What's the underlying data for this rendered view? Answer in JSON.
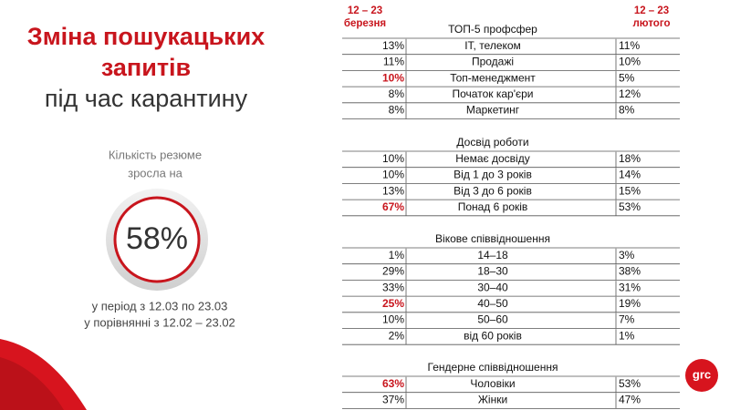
{
  "header": {
    "title_lines": [
      "Зміна пошукацьких",
      "запитів"
    ],
    "subtitle": "під час карантину"
  },
  "stat": {
    "caption_lines": [
      "Кількість резюме",
      "зросла на"
    ],
    "value": "58%",
    "note_lines": [
      "у період з 12.03 по 23.03",
      "у порівнянні з 12.02 – 23.02"
    ]
  },
  "table": {
    "col_march": [
      "12 – 23",
      "березня"
    ],
    "col_february": [
      "12 – 23",
      "лютого"
    ],
    "sections": [
      {
        "title": "ТОП-5 профсфер",
        "rows": [
          {
            "march": "13%",
            "label": "IT, телеком",
            "february": "11%"
          },
          {
            "march": "11%",
            "label": "Продажі",
            "february": "10%"
          },
          {
            "march": "10%",
            "label": "Топ-менеджмент",
            "february": "5%",
            "highlight": true
          },
          {
            "march": "8%",
            "label": "Початок кар'єри",
            "february": "12%"
          },
          {
            "march": "8%",
            "label": "Маркетинг",
            "february": "8%"
          }
        ]
      },
      {
        "title": "Досвід роботи",
        "rows": [
          {
            "march": "10%",
            "label": "Немає досвіду",
            "february": "18%"
          },
          {
            "march": "10%",
            "label": "Від 1 до 3 років",
            "february": "14%"
          },
          {
            "march": "13%",
            "label": "Від 3 до 6 років",
            "february": "15%"
          },
          {
            "march": "67%",
            "label": "Понад 6 років",
            "february": "53%",
            "highlight": true
          }
        ]
      },
      {
        "title": "Вікове співвідношення",
        "rows": [
          {
            "march": "1%",
            "label": "14–18",
            "february": "3%"
          },
          {
            "march": "29%",
            "label": "18–30",
            "february": "38%"
          },
          {
            "march": "33%",
            "label": "30–40",
            "february": "31%"
          },
          {
            "march": "25%",
            "label": "40–50",
            "february": "19%",
            "highlight": true
          },
          {
            "march": "10%",
            "label": "50–60",
            "february": "7%"
          },
          {
            "march": "2%",
            "label": "від 60 років",
            "february": "1%"
          }
        ]
      },
      {
        "title": "Гендерне співвідношення",
        "rows": [
          {
            "march": "63%",
            "label": "Чоловіки",
            "february": "53%",
            "highlight": true
          },
          {
            "march": "37%",
            "label": "Жінки",
            "february": "47%"
          }
        ]
      }
    ]
  },
  "logo": "grc"
}
